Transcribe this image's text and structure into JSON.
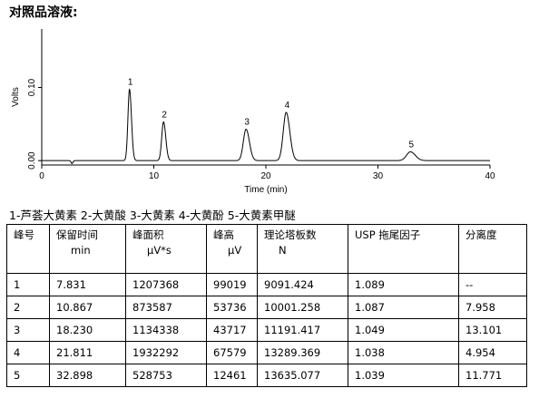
{
  "page_title": "对照品溶液:",
  "legend_text": "1-芦荟大黄素 2-大黄酸 3-大黄素 4-大黄酚 5-大黄素甲醚",
  "chart_data": {
    "type": "line",
    "xlabel": "Time (min)",
    "ylabel": "Volts",
    "xlim": [
      0,
      40
    ],
    "ylim": [
      -0.006,
      0.18
    ],
    "x_ticks": [
      0,
      10,
      20,
      30,
      40
    ],
    "x_tick_labels": [
      "0",
      "10",
      "20",
      "30",
      "40"
    ],
    "y_ticks": [
      0.0,
      0.1
    ],
    "y_tick_labels": [
      "0.00",
      "0.10"
    ],
    "baseline": 0.0,
    "disturbance": {
      "x": 2.7,
      "depth": -0.004
    },
    "peaks": [
      {
        "label": "1",
        "rt": 7.831,
        "height": 0.0975,
        "width": 0.14
      },
      {
        "label": "2",
        "rt": 10.867,
        "height": 0.053,
        "width": 0.16
      },
      {
        "label": "3",
        "rt": 18.23,
        "height": 0.043,
        "width": 0.24
      },
      {
        "label": "4",
        "rt": 21.811,
        "height": 0.066,
        "width": 0.26
      },
      {
        "label": "5",
        "rt": 32.898,
        "height": 0.012,
        "width": 0.35
      }
    ]
  },
  "table": {
    "headers": [
      {
        "line1": "峰号",
        "line2": ""
      },
      {
        "line1": "保留时间",
        "line2": "min"
      },
      {
        "line1": "峰面积",
        "line2": "μV*s"
      },
      {
        "line1": "峰高",
        "line2": "μV"
      },
      {
        "line1": "理论塔板数",
        "line2": "N"
      },
      {
        "line1": "USP 拖尾因子",
        "line2": ""
      },
      {
        "line1": "分离度",
        "line2": ""
      }
    ],
    "rows": [
      [
        "1",
        "7.831",
        "1207368",
        "99019",
        "9091.424",
        "1.089",
        "--"
      ],
      [
        "2",
        "10.867",
        "873587",
        "53736",
        "10001.258",
        "1.087",
        "7.958"
      ],
      [
        "3",
        "18.230",
        "1134338",
        "43717",
        "11191.417",
        "1.049",
        "13.101"
      ],
      [
        "4",
        "21.811",
        "1932292",
        "67579",
        "13289.369",
        "1.038",
        "4.954"
      ],
      [
        "5",
        "32.898",
        "528753",
        "12461",
        "13635.077",
        "1.039",
        "11.771"
      ]
    ]
  }
}
